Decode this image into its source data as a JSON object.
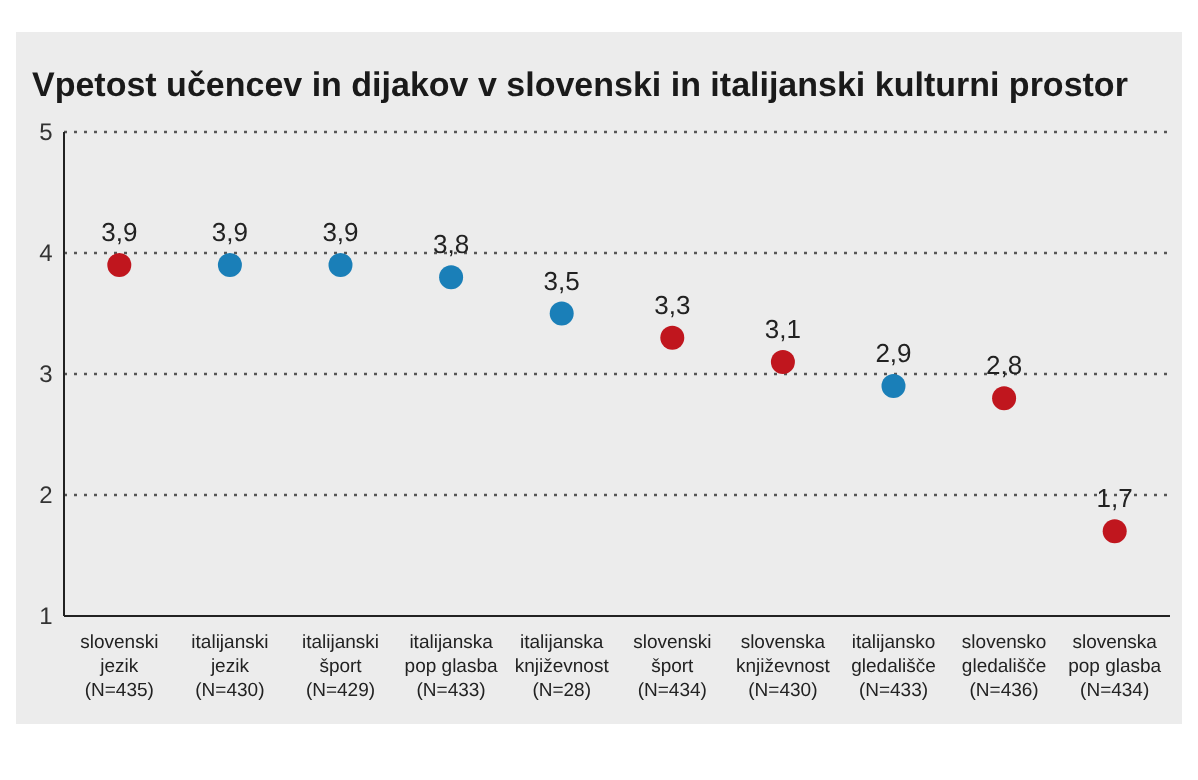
{
  "chart_data": {
    "type": "scatter",
    "title": "Vpetost učencev in dijakov v slovenski in italijanski kulturni prostor",
    "categories": [
      "slovenski\njezik\n(N=435)",
      "italijanski\njezik\n(N=430)",
      "italijanski\nšport\n(N=429)",
      "italijanska\npop glasba\n(N=433)",
      "italijanska\nknjiževnost\n(N=28)",
      "slovenski\nšport\n(N=434)",
      "slovenska\nknjiževnost\n(N=430)",
      "italijansko\ngledališče\n(N=433)",
      "slovensko\ngledališče\n(N=436)",
      "slovenska\npop glasba\n(N=434)"
    ],
    "values": [
      3.9,
      3.9,
      3.9,
      3.8,
      3.5,
      3.3,
      3.1,
      2.9,
      2.8,
      1.7
    ],
    "value_labels": [
      "3,9",
      "3,9",
      "3,9",
      "3,8",
      "3,5",
      "3,3",
      "3,1",
      "2,9",
      "2,8",
      "1,7"
    ],
    "colors": [
      "#c0161e",
      "#1a7fb8",
      "#1a7fb8",
      "#1a7fb8",
      "#1a7fb8",
      "#c0161e",
      "#c0161e",
      "#1a7fb8",
      "#c0161e",
      "#c0161e"
    ],
    "ylim": [
      1,
      5
    ],
    "yticks": [
      1,
      2,
      3,
      4,
      5
    ],
    "grid": "y",
    "marker": "circle"
  }
}
